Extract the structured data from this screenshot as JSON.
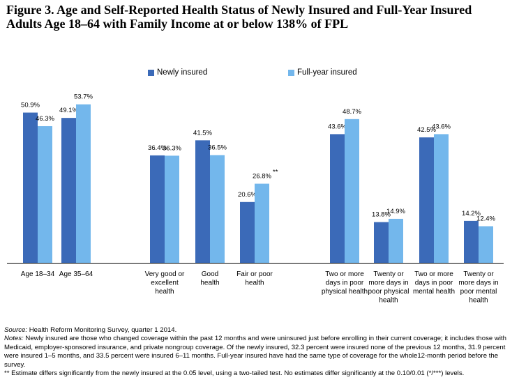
{
  "title": {
    "line1": "Figure 3. Age and Self-Reported Health Status of Newly Insured and Full-Year Insured",
    "line2": "Adults Age 18–64 with Family Income at or below 138% of FPL"
  },
  "colors": {
    "newly": "#3b6ab8",
    "fullyear": "#73b7ec"
  },
  "chart_data": {
    "type": "bar",
    "ylim": [
      0,
      60
    ],
    "series": [
      {
        "name": "Newly insured"
      },
      {
        "name": "Full-year insured"
      }
    ],
    "groups": [
      {
        "label": [
          "Age 18–34"
        ],
        "values": [
          50.9,
          46.3
        ],
        "labels": [
          "50.9%",
          "46.3%"
        ]
      },
      {
        "label": [
          "Age 35–64"
        ],
        "values": [
          49.1,
          53.7
        ],
        "labels": [
          "49.1%",
          "53.7%"
        ]
      },
      {
        "label": [
          "Very good or",
          "excellent",
          "health"
        ],
        "values": [
          36.4,
          36.3
        ],
        "labels": [
          "36.4%",
          "36.3%"
        ]
      },
      {
        "label": [
          "Good",
          "health"
        ],
        "values": [
          41.5,
          36.5
        ],
        "labels": [
          "41.5%",
          "36.5%"
        ]
      },
      {
        "label": [
          "Fair or poor",
          "health"
        ],
        "values": [
          20.6,
          26.8
        ],
        "labels": [
          "20.6%",
          "26.8%"
        ],
        "significance": "**"
      },
      {
        "label": [
          "Two or more",
          "days in poor",
          "physical health"
        ],
        "values": [
          43.6,
          48.7
        ],
        "labels": [
          "43.6%",
          "48.7%"
        ]
      },
      {
        "label": [
          "Twenty or",
          "more days in",
          "poor physical",
          "health"
        ],
        "values": [
          13.8,
          14.9
        ],
        "labels": [
          "13.8%",
          "14.9%"
        ]
      },
      {
        "label": [
          "Two or more",
          "days in poor",
          "mental health"
        ],
        "values": [
          42.5,
          43.6
        ],
        "labels": [
          "42.5%",
          "43.6%"
        ]
      },
      {
        "label": [
          "Twenty or",
          "more days in",
          "poor mental",
          "health"
        ],
        "values": [
          14.2,
          12.4
        ],
        "labels": [
          "14.2%",
          "12.4%"
        ]
      }
    ]
  },
  "notes": {
    "source_label": "Source:",
    "source_text": " Health Reform Monitoring Survey, quarter 1 2014.",
    "notes_label": "Notes:",
    "notes_text": " Newly insured are those who changed coverage within the past 12 months and were uninsured just before enrolling in their current coverage; it includes those with Medicaid, employer-sponsored insurance, and private nongroup coverage. Of the newly insured, 32.3 percent were insured none of the previous 12 months, 31.9 percent were insured 1–5 months, and 33.5 percent were insured 6–11 months. Full-year insured have had the same type of coverage for the whole12-month period before the survey.",
    "significance_text": "** Estimate differs significantly from the newly insured at the 0.05 level, using a two-tailed test. No estimates differ significantly at the 0.10/0.01 (*/***) levels."
  }
}
